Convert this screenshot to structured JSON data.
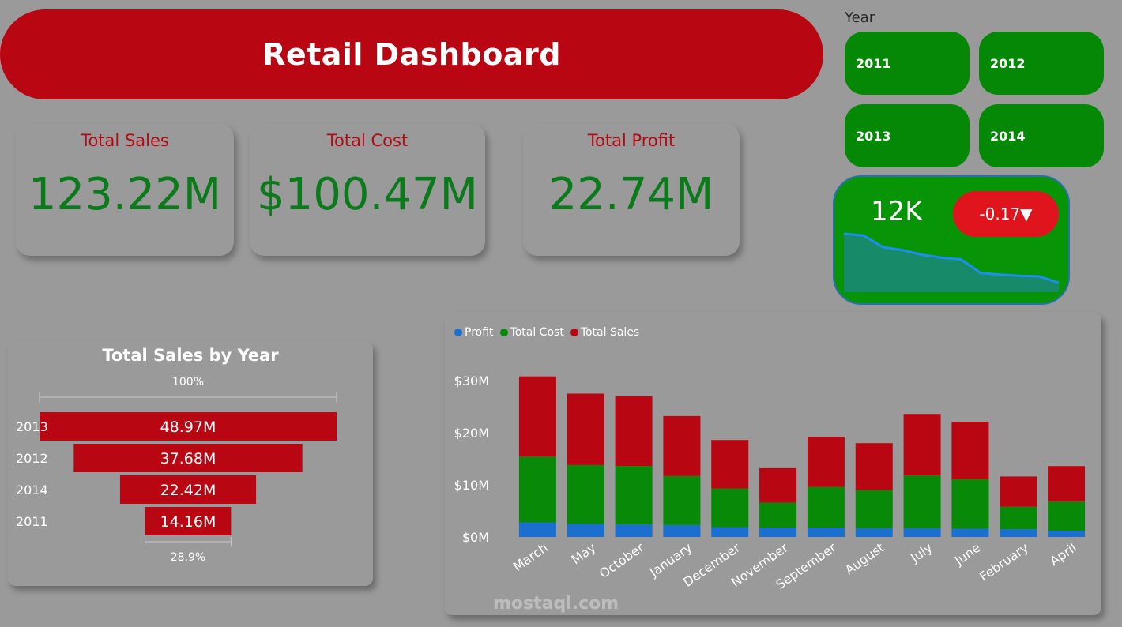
{
  "header": {
    "title": "Retail Dashboard"
  },
  "kpis": [
    {
      "label": "Total Sales",
      "value": "123.22M"
    },
    {
      "label": "Total Cost",
      "value": "$100.47M"
    },
    {
      "label": "Total Profit",
      "value": "22.74M"
    }
  ],
  "year_filter": {
    "label": "Year",
    "options": [
      "2011",
      "2012",
      "2013",
      "2014"
    ]
  },
  "spark_card": {
    "value": "12K",
    "delta": "-0.17▼",
    "trend": [
      1.0,
      0.97,
      0.77,
      0.72,
      0.64,
      0.59,
      0.56,
      0.33,
      0.3,
      0.28,
      0.27,
      0.16
    ]
  },
  "watermark": "mostaql.com",
  "colors": {
    "profit": "#1a6fcf",
    "cost": "#088a08",
    "sales": "#b80612",
    "accent": "#b80612"
  },
  "chart_data": [
    {
      "type": "funnel",
      "title": "Total Sales by Year",
      "categories": [
        "2013",
        "2012",
        "2014",
        "2011"
      ],
      "values": [
        48.97,
        37.68,
        22.42,
        14.16
      ],
      "value_labels": [
        "48.97M",
        "37.68M",
        "22.42M",
        "14.16M"
      ],
      "top_percent_label": "100%",
      "bottom_percent_label": "28.9%"
    },
    {
      "type": "bar",
      "stacked": true,
      "categories": [
        "March",
        "May",
        "October",
        "January",
        "December",
        "November",
        "September",
        "August",
        "July",
        "June",
        "February",
        "April"
      ],
      "series": [
        {
          "name": "Profit",
          "values": [
            2.8,
            2.5,
            2.4,
            2.3,
            1.9,
            1.8,
            1.8,
            1.7,
            1.7,
            1.6,
            1.5,
            1.2
          ]
        },
        {
          "name": "Total Cost",
          "values": [
            12.6,
            11.3,
            11.2,
            9.4,
            7.4,
            4.8,
            7.8,
            7.3,
            10.1,
            9.5,
            4.3,
            5.6
          ]
        },
        {
          "name": "Total Sales",
          "values": [
            15.4,
            13.7,
            13.4,
            11.5,
            9.3,
            6.6,
            9.6,
            9.0,
            11.8,
            11.0,
            5.8,
            6.8
          ]
        }
      ],
      "ylim": [
        0,
        30
      ],
      "yticks": [
        0,
        10,
        20,
        30
      ],
      "ytick_labels": [
        "$0M",
        "$10M",
        "$20M",
        "$30M"
      ],
      "legend_position": "top-left"
    }
  ]
}
